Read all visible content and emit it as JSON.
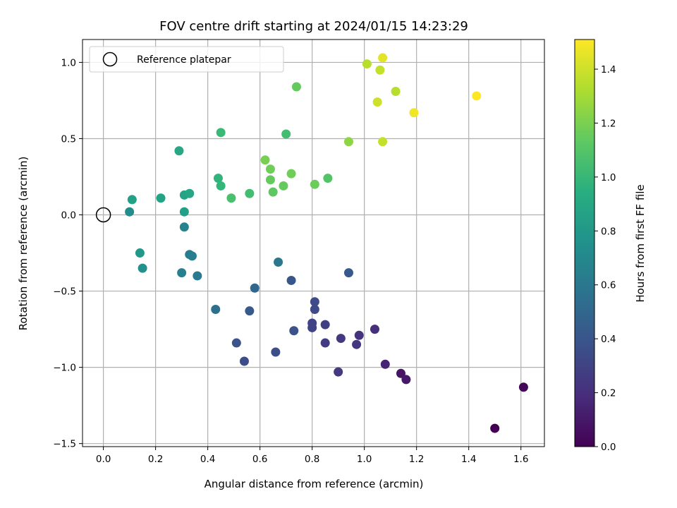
{
  "chart_data": {
    "type": "scatter",
    "title": "FOV centre drift starting at 2024/01/15 14:23:29",
    "xlabel": "Angular distance from reference (arcmin)",
    "ylabel": "Rotation from reference (arcmin)",
    "xlim": [
      -0.08,
      1.69
    ],
    "ylim": [
      -1.52,
      1.15
    ],
    "xticks": [
      0.0,
      0.2,
      0.4,
      0.6,
      0.8,
      1.0,
      1.2,
      1.4,
      1.6
    ],
    "xtick_labels": [
      "0.0",
      "0.2",
      "0.4",
      "0.6",
      "0.8",
      "1.0",
      "1.2",
      "1.4",
      "1.6"
    ],
    "yticks": [
      -1.5,
      -1.0,
      -0.5,
      0.0,
      0.5,
      1.0
    ],
    "ytick_labels": [
      "−1.5",
      "−1.0",
      "−0.5",
      "0.0",
      "0.5",
      "1.0"
    ],
    "grid": true,
    "legend": {
      "position": "upper-left",
      "entries": [
        "Reference platepar"
      ]
    },
    "colorbar": {
      "label": "Hours from first FF file",
      "colormap": "viridis",
      "range": [
        0.0,
        1.51
      ],
      "ticks": [
        0.0,
        0.2,
        0.4,
        0.6,
        0.8,
        1.0,
        1.2,
        1.4
      ],
      "tick_labels": [
        "0.0",
        "0.2",
        "0.4",
        "0.6",
        "0.8",
        "1.0",
        "1.2",
        "1.4"
      ]
    },
    "reference_point": {
      "x": 0.0,
      "y": 0.0,
      "marker": "hollow-circle"
    },
    "points": [
      {
        "x": 1.5,
        "y": -1.4,
        "c": 0.0
      },
      {
        "x": 1.61,
        "y": -1.13,
        "c": 0.02
      },
      {
        "x": 1.14,
        "y": -1.04,
        "c": 0.08
      },
      {
        "x": 1.16,
        "y": -1.08,
        "c": 0.1
      },
      {
        "x": 1.08,
        "y": -0.98,
        "c": 0.15
      },
      {
        "x": 1.04,
        "y": -0.75,
        "c": 0.2
      },
      {
        "x": 0.98,
        "y": -0.79,
        "c": 0.22
      },
      {
        "x": 0.97,
        "y": -0.85,
        "c": 0.24
      },
      {
        "x": 0.91,
        "y": -0.81,
        "c": 0.25
      },
      {
        "x": 0.9,
        "y": -1.03,
        "c": 0.26
      },
      {
        "x": 0.85,
        "y": -0.84,
        "c": 0.27
      },
      {
        "x": 0.85,
        "y": -0.72,
        "c": 0.28
      },
      {
        "x": 0.8,
        "y": -0.74,
        "c": 0.3
      },
      {
        "x": 0.8,
        "y": -0.71,
        "c": 0.3
      },
      {
        "x": 0.81,
        "y": -0.62,
        "c": 0.33
      },
      {
        "x": 0.81,
        "y": -0.57,
        "c": 0.34
      },
      {
        "x": 0.73,
        "y": -0.76,
        "c": 0.38
      },
      {
        "x": 0.66,
        "y": -0.9,
        "c": 0.36
      },
      {
        "x": 0.54,
        "y": -0.96,
        "c": 0.35
      },
      {
        "x": 0.51,
        "y": -0.84,
        "c": 0.38
      },
      {
        "x": 0.56,
        "y": -0.63,
        "c": 0.42
      },
      {
        "x": 0.72,
        "y": -0.43,
        "c": 0.4
      },
      {
        "x": 0.94,
        "y": -0.38,
        "c": 0.42
      },
      {
        "x": 0.58,
        "y": -0.48,
        "c": 0.5
      },
      {
        "x": 0.43,
        "y": -0.62,
        "c": 0.55
      },
      {
        "x": 0.67,
        "y": -0.31,
        "c": 0.6
      },
      {
        "x": 0.36,
        "y": -0.4,
        "c": 0.62
      },
      {
        "x": 0.33,
        "y": -0.26,
        "c": 0.63
      },
      {
        "x": 0.34,
        "y": -0.27,
        "c": 0.64
      },
      {
        "x": 0.3,
        "y": -0.38,
        "c": 0.66
      },
      {
        "x": 0.31,
        "y": -0.08,
        "c": 0.68
      },
      {
        "x": 0.15,
        "y": -0.35,
        "c": 0.76
      },
      {
        "x": 0.14,
        "y": -0.25,
        "c": 0.8
      },
      {
        "x": 0.1,
        "y": 0.02,
        "c": 0.74
      },
      {
        "x": 0.31,
        "y": 0.02,
        "c": 0.85
      },
      {
        "x": 0.11,
        "y": 0.1,
        "c": 0.86
      },
      {
        "x": 0.22,
        "y": 0.11,
        "c": 0.87
      },
      {
        "x": 0.31,
        "y": 0.13,
        "c": 0.88
      },
      {
        "x": 0.33,
        "y": 0.14,
        "c": 0.89
      },
      {
        "x": 0.29,
        "y": 0.42,
        "c": 0.9
      },
      {
        "x": 0.44,
        "y": 0.24,
        "c": 0.98
      },
      {
        "x": 0.45,
        "y": 0.19,
        "c": 1.0
      },
      {
        "x": 0.49,
        "y": 0.11,
        "c": 1.07
      },
      {
        "x": 0.56,
        "y": 0.14,
        "c": 1.05
      },
      {
        "x": 0.45,
        "y": 0.54,
        "c": 1.02
      },
      {
        "x": 0.7,
        "y": 0.53,
        "c": 1.05
      },
      {
        "x": 0.62,
        "y": 0.36,
        "c": 1.2
      },
      {
        "x": 0.64,
        "y": 0.3,
        "c": 1.18
      },
      {
        "x": 0.64,
        "y": 0.23,
        "c": 1.15
      },
      {
        "x": 0.65,
        "y": 0.15,
        "c": 1.13
      },
      {
        "x": 0.69,
        "y": 0.19,
        "c": 1.15
      },
      {
        "x": 0.72,
        "y": 0.27,
        "c": 1.18
      },
      {
        "x": 0.81,
        "y": 0.2,
        "c": 1.17
      },
      {
        "x": 0.86,
        "y": 0.24,
        "c": 1.1
      },
      {
        "x": 0.74,
        "y": 0.84,
        "c": 1.15
      },
      {
        "x": 0.94,
        "y": 0.48,
        "c": 1.25
      },
      {
        "x": 1.01,
        "y": 0.99,
        "c": 1.35
      },
      {
        "x": 1.06,
        "y": 0.95,
        "c": 1.38
      },
      {
        "x": 1.07,
        "y": 1.03,
        "c": 1.45
      },
      {
        "x": 1.05,
        "y": 0.74,
        "c": 1.4
      },
      {
        "x": 1.07,
        "y": 0.48,
        "c": 1.38
      },
      {
        "x": 1.12,
        "y": 0.81,
        "c": 1.35
      },
      {
        "x": 1.19,
        "y": 0.67,
        "c": 1.48
      },
      {
        "x": 1.43,
        "y": 0.78,
        "c": 1.51
      }
    ]
  }
}
